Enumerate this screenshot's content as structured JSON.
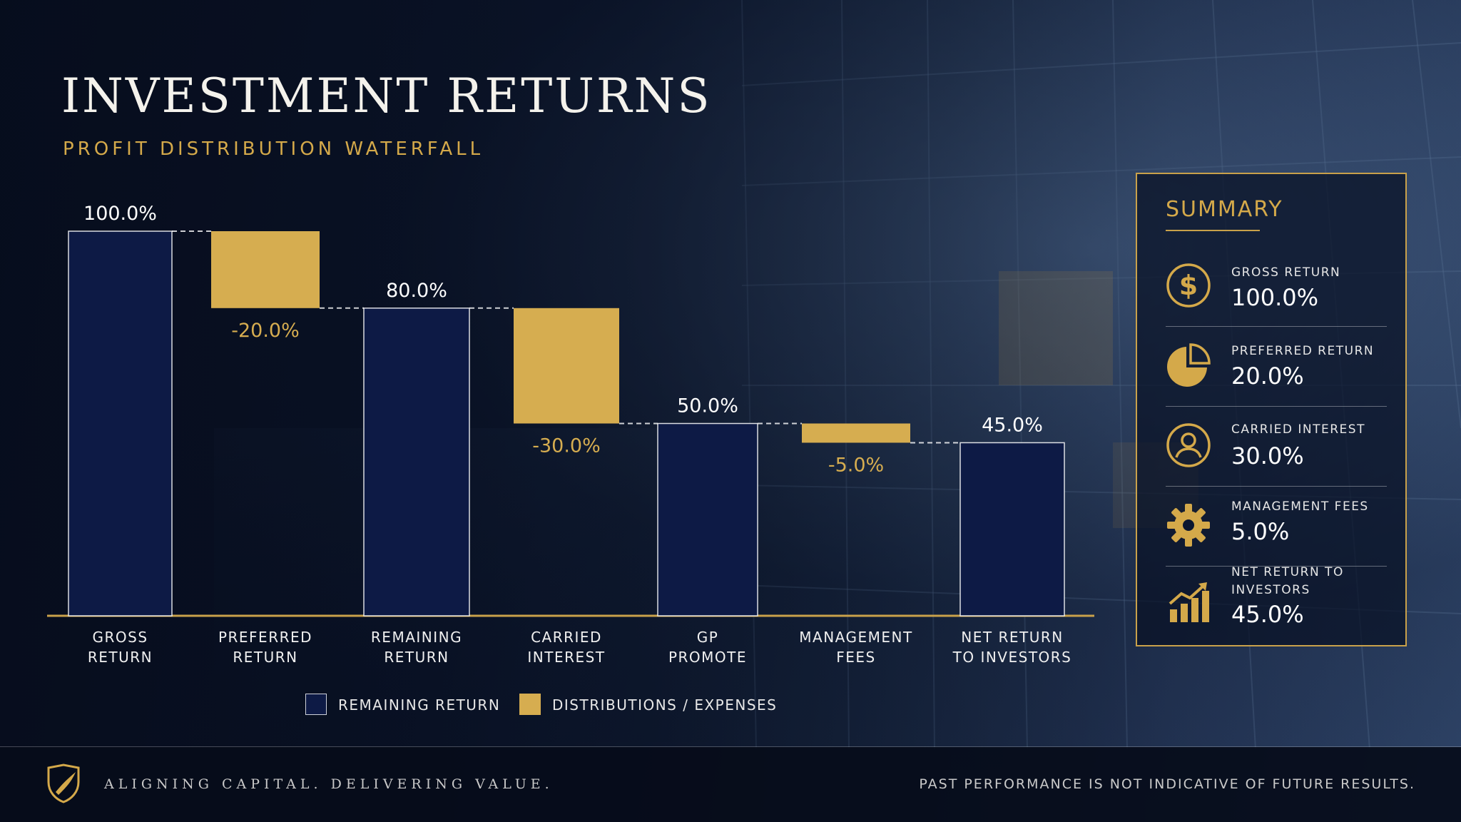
{
  "header": {
    "title": "INVESTMENT RETURNS",
    "subtitle": "PROFIT DISTRIBUTION WATERFALL"
  },
  "colors": {
    "remaining": "#0d1a45",
    "distribution": "#d6ad50",
    "accent": "#c9a14a"
  },
  "chart_data": {
    "type": "bar",
    "subtype": "waterfall",
    "categories": [
      "GROSS RETURN",
      "PREFERRED RETURN",
      "REMAINING RETURN",
      "CARRIED INTEREST",
      "GP PROMOTE",
      "MANAGEMENT FEES",
      "NET RETURN TO INVESTORS"
    ],
    "category_lines": [
      [
        "GROSS",
        "RETURN"
      ],
      [
        "PREFERRED",
        "RETURN"
      ],
      [
        "REMAINING",
        "RETURN"
      ],
      [
        "CARRIED",
        "INTEREST"
      ],
      [
        "GP",
        "PROMOTE"
      ],
      [
        "MANAGEMENT",
        "FEES"
      ],
      [
        "NET RETURN",
        "TO INVESTORS"
      ]
    ],
    "bars": [
      {
        "kind": "total",
        "start": 0,
        "end": 100,
        "label": "100.0%"
      },
      {
        "kind": "delta",
        "start": 100,
        "end": 80,
        "label": "-20.0%"
      },
      {
        "kind": "total",
        "start": 0,
        "end": 80,
        "label": "80.0%"
      },
      {
        "kind": "delta",
        "start": 80,
        "end": 50,
        "label": "-30.0%"
      },
      {
        "kind": "total",
        "start": 0,
        "end": 50,
        "label": "50.0%"
      },
      {
        "kind": "delta",
        "start": 50,
        "end": 45,
        "label": "-5.0%"
      },
      {
        "kind": "total",
        "start": 0,
        "end": 45,
        "label": "45.0%"
      }
    ],
    "ylim": [
      0,
      100
    ],
    "grid": false,
    "legend": [
      {
        "name": "REMAINING RETURN",
        "kind": "total"
      },
      {
        "name": "DISTRIBUTIONS / EXPENSES",
        "kind": "delta"
      }
    ],
    "legend_position": "bottom"
  },
  "summary": {
    "title": "SUMMARY",
    "items": [
      {
        "icon": "dollar-icon",
        "label": "GROSS RETURN",
        "value": "100.0%"
      },
      {
        "icon": "pie-chart-icon",
        "label": "PREFERRED RETURN",
        "value": "20.0%"
      },
      {
        "icon": "person-icon",
        "label": "CARRIED INTEREST",
        "value": "30.0%"
      },
      {
        "icon": "gear-icon",
        "label": "MANAGEMENT FEES",
        "value": "5.0%"
      },
      {
        "icon": "growth-chart-icon",
        "label": "NET RETURN TO INVESTORS",
        "value": "45.0%"
      }
    ]
  },
  "footer": {
    "logo_icon": "shield-logo-icon",
    "tagline": "ALIGNING CAPITAL. DELIVERING VALUE.",
    "disclaimer": "PAST PERFORMANCE IS NOT INDICATIVE OF FUTURE RESULTS."
  }
}
